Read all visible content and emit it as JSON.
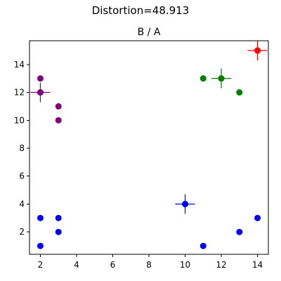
{
  "chart_data": {
    "type": "scatter",
    "suptitle": "Distortion=48.913",
    "title": "B / A",
    "xlabel": "",
    "ylabel": "",
    "xlim": [
      1.4,
      14.6
    ],
    "ylim": [
      0.4,
      15.7
    ],
    "xticks": [
      2,
      4,
      6,
      8,
      10,
      12,
      14
    ],
    "yticks": [
      2,
      4,
      6,
      8,
      10,
      12,
      14
    ],
    "grid": false,
    "clusters": [
      {
        "color": "#800080",
        "points": [
          [
            2,
            13
          ],
          [
            2,
            12
          ],
          [
            3,
            11
          ],
          [
            3,
            10
          ]
        ],
        "centroid": [
          2,
          12
        ]
      },
      {
        "color": "#008000",
        "points": [
          [
            11,
            13
          ],
          [
            12,
            13
          ],
          [
            13,
            12
          ]
        ],
        "centroid": [
          12,
          13
        ]
      },
      {
        "color": "#ff0000",
        "points": [
          [
            14,
            15
          ]
        ],
        "centroid": [
          14,
          15
        ]
      },
      {
        "color": "#0000ff",
        "points": [
          [
            2,
            3
          ],
          [
            3,
            3
          ],
          [
            3,
            2
          ],
          [
            2,
            1
          ],
          [
            10,
            4
          ],
          [
            13,
            2
          ],
          [
            14,
            3
          ],
          [
            11,
            1
          ]
        ],
        "centroid": [
          10,
          4
        ]
      }
    ]
  }
}
